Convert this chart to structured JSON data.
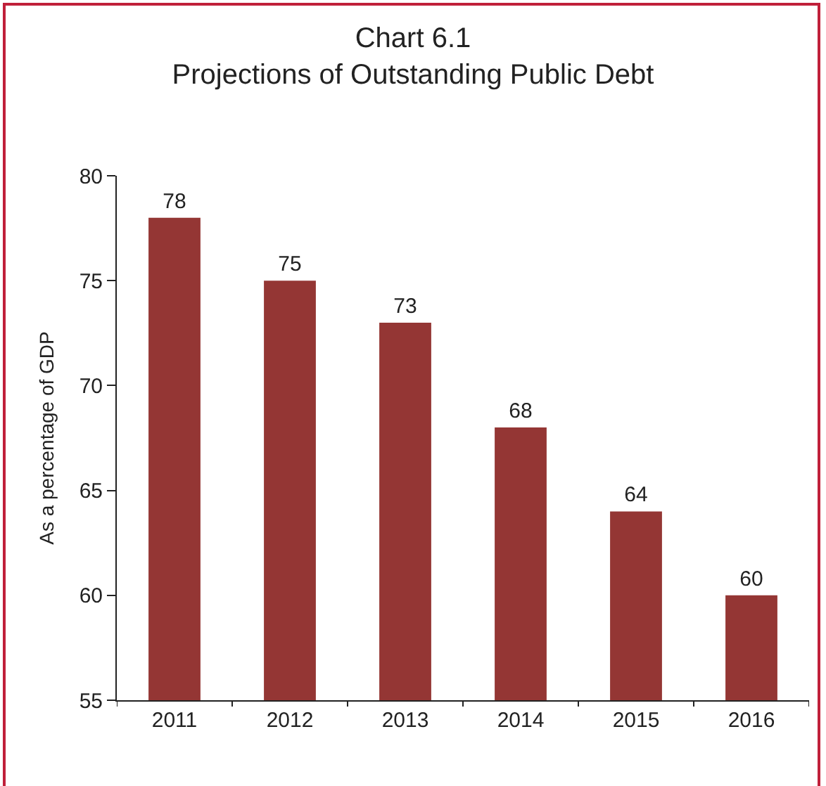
{
  "chart_data": {
    "type": "bar",
    "title": "Chart 6.1",
    "subtitle": "Projections of Outstanding Public Debt",
    "ylabel": "As a percentage of GDP",
    "categories": [
      "2011",
      "2012",
      "2013",
      "2014",
      "2015",
      "2016"
    ],
    "values": [
      78,
      75,
      73,
      68,
      64,
      60
    ],
    "color": "#943634",
    "ylim": [
      55,
      80
    ],
    "yticks": [
      55,
      60,
      65,
      70,
      75,
      80
    ],
    "grid": false,
    "data_labels": true
  }
}
